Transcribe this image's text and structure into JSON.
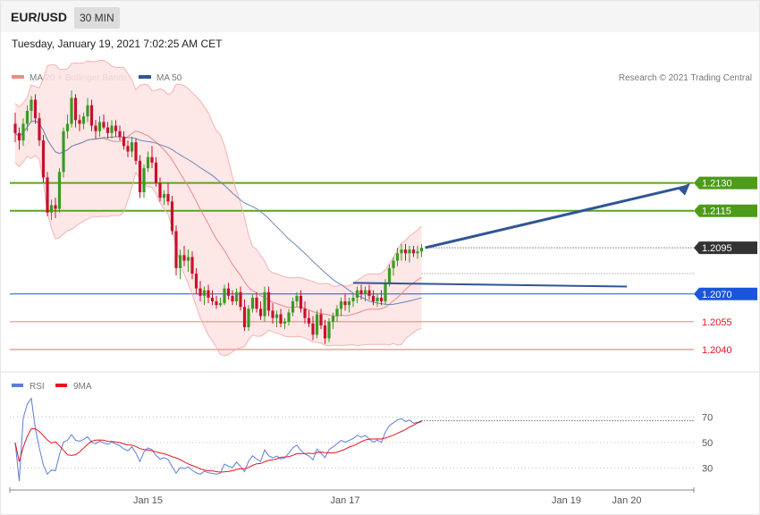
{
  "header": {
    "symbol": "EUR/USD",
    "timeframe": "30 MIN"
  },
  "timestamp": "Tuesday, January 19, 2021 7:02:25 AM CET",
  "legend": [
    {
      "label": "MA 20 + Bollinger Bands",
      "color": "#f08a8a"
    },
    {
      "label": "MA 50",
      "color": "#2f5597"
    }
  ],
  "rsi_legend": [
    {
      "label": "RSI",
      "color": "#5b7fd6"
    },
    {
      "label": "9MA",
      "color": "#e8141e"
    }
  ],
  "credit": "Research © 2021 Trading Central",
  "colors": {
    "up": "#3a9a23",
    "down": "#c8102e",
    "resistance": "#5aa51f",
    "pivot": "#1a56db",
    "support": "#f08a8a",
    "arrow": "#2f5597",
    "band": "#fde3e3"
  },
  "levels": [
    {
      "value": "1.2130",
      "type": "resistance",
      "color": "#4e9a1a"
    },
    {
      "value": "1.2115",
      "type": "resistance",
      "color": "#4e9a1a"
    },
    {
      "value": "1.2095",
      "type": "current",
      "color": "#333333"
    },
    {
      "value": "1.2070",
      "type": "pivot",
      "color": "#1a56db"
    },
    {
      "value": "1.2055",
      "type": "support",
      "color": "#e8141e"
    },
    {
      "value": "1.2040",
      "type": "support",
      "color": "#e8141e"
    }
  ],
  "chart_data": [
    {
      "type": "candlestick",
      "title": "EUR/USD 30 MIN",
      "x_ticks": [
        "Jan 15",
        "Jan 17",
        "Jan 19",
        "Jan 20"
      ],
      "ylim": [
        1.2038,
        1.2183
      ],
      "candles": [
        [
          1.2162,
          1.2168,
          1.2152,
          1.2157
        ],
        [
          1.2157,
          1.216,
          1.2148,
          1.2153
        ],
        [
          1.2153,
          1.2165,
          1.215,
          1.2162
        ],
        [
          1.2162,
          1.2172,
          1.2158,
          1.2169
        ],
        [
          1.2169,
          1.2177,
          1.2163,
          1.2175
        ],
        [
          1.2175,
          1.2178,
          1.2162,
          1.2165
        ],
        [
          1.2165,
          1.2168,
          1.215,
          1.2153
        ],
        [
          1.2153,
          1.2156,
          1.213,
          1.2133
        ],
        [
          1.2133,
          1.2136,
          1.2112,
          1.2114
        ],
        [
          1.2114,
          1.2121,
          1.211,
          1.2118
        ],
        [
          1.2118,
          1.2122,
          1.2111,
          1.2116
        ],
        [
          1.2116,
          1.2138,
          1.2114,
          1.2136
        ],
        [
          1.2136,
          1.216,
          1.2133,
          1.2158
        ],
        [
          1.2158,
          1.2167,
          1.2154,
          1.2162
        ],
        [
          1.2162,
          1.218,
          1.216,
          1.2176
        ],
        [
          1.2176,
          1.2178,
          1.216,
          1.2164
        ],
        [
          1.2164,
          1.2167,
          1.2158,
          1.2162
        ],
        [
          1.2162,
          1.2168,
          1.2159,
          1.2166
        ],
        [
          1.2166,
          1.2176,
          1.2163,
          1.2172
        ],
        [
          1.2172,
          1.2175,
          1.2158,
          1.2161
        ],
        [
          1.2161,
          1.2164,
          1.2154,
          1.2158
        ],
        [
          1.2158,
          1.2166,
          1.2155,
          1.2163
        ],
        [
          1.2163,
          1.2167,
          1.2159,
          1.216
        ],
        [
          1.216,
          1.2163,
          1.2154,
          1.2157
        ],
        [
          1.2157,
          1.2164,
          1.2154,
          1.2161
        ],
        [
          1.2161,
          1.2164,
          1.2155,
          1.2158
        ],
        [
          1.2158,
          1.2161,
          1.2153,
          1.2155
        ],
        [
          1.2155,
          1.2158,
          1.2148,
          1.215
        ],
        [
          1.215,
          1.2153,
          1.2144,
          1.2147
        ],
        [
          1.2147,
          1.2155,
          1.2144,
          1.2152
        ],
        [
          1.2152,
          1.2154,
          1.214,
          1.2142
        ],
        [
          1.2142,
          1.2145,
          1.2122,
          1.2125
        ],
        [
          1.2125,
          1.214,
          1.2122,
          1.2138
        ],
        [
          1.2138,
          1.2147,
          1.2136,
          1.2144
        ],
        [
          1.2144,
          1.215,
          1.2138,
          1.2141
        ],
        [
          1.2141,
          1.2144,
          1.2128,
          1.213
        ],
        [
          1.213,
          1.2133,
          1.212,
          1.2122
        ],
        [
          1.2122,
          1.2126,
          1.2118,
          1.2124
        ],
        [
          1.2124,
          1.213,
          1.2118,
          1.212
        ],
        [
          1.212,
          1.2123,
          1.2102,
          1.2104
        ],
        [
          1.2104,
          1.2107,
          1.208,
          1.2084
        ],
        [
          1.2084,
          1.2094,
          1.2078,
          1.2091
        ],
        [
          1.2091,
          1.2096,
          1.2085,
          1.2088
        ],
        [
          1.2088,
          1.2094,
          1.2082,
          1.209
        ],
        [
          1.209,
          1.2093,
          1.2078,
          1.2081
        ],
        [
          1.2081,
          1.2084,
          1.207,
          1.2073
        ],
        [
          1.2073,
          1.2077,
          1.2066,
          1.2069
        ],
        [
          1.2069,
          1.2074,
          1.2064,
          1.2072
        ],
        [
          1.2072,
          1.2075,
          1.2065,
          1.2068
        ],
        [
          1.2068,
          1.2072,
          1.2064,
          1.2066
        ],
        [
          1.2066,
          1.2069,
          1.2062,
          1.2064
        ],
        [
          1.2064,
          1.2068,
          1.2063,
          1.2065
        ],
        [
          1.2065,
          1.2075,
          1.2064,
          1.2073
        ],
        [
          1.2073,
          1.2076,
          1.2067,
          1.2069
        ],
        [
          1.2069,
          1.2072,
          1.2064,
          1.2066
        ],
        [
          1.2066,
          1.2073,
          1.2064,
          1.2071
        ],
        [
          1.2071,
          1.2074,
          1.2061,
          1.2063
        ],
        [
          1.2063,
          1.2067,
          1.205,
          1.2052
        ],
        [
          1.2052,
          1.2064,
          1.205,
          1.2062
        ],
        [
          1.2062,
          1.207,
          1.206,
          1.2068
        ],
        [
          1.2068,
          1.2071,
          1.206,
          1.2062
        ],
        [
          1.2062,
          1.2066,
          1.2056,
          1.2058
        ],
        [
          1.2058,
          1.2074,
          1.2055,
          1.2071
        ],
        [
          1.2071,
          1.2074,
          1.2058,
          1.2061
        ],
        [
          1.2061,
          1.2065,
          1.2054,
          1.2057
        ],
        [
          1.2057,
          1.2061,
          1.2052,
          1.2059
        ],
        [
          1.2059,
          1.2062,
          1.2052,
          1.2054
        ],
        [
          1.2054,
          1.2057,
          1.2051,
          1.2055
        ],
        [
          1.2055,
          1.2062,
          1.2053,
          1.206
        ],
        [
          1.206,
          1.2068,
          1.2058,
          1.2066
        ],
        [
          1.2066,
          1.2071,
          1.2063,
          1.2069
        ],
        [
          1.2069,
          1.2072,
          1.206,
          1.2062
        ],
        [
          1.2062,
          1.2066,
          1.2054,
          1.2057
        ],
        [
          1.2057,
          1.2061,
          1.2052,
          1.2054
        ],
        [
          1.2054,
          1.2058,
          1.2045,
          1.2048
        ],
        [
          1.2048,
          1.2061,
          1.2046,
          1.2059
        ],
        [
          1.2059,
          1.2062,
          1.2051,
          1.2053
        ],
        [
          1.2053,
          1.2056,
          1.2043,
          1.2046
        ],
        [
          1.2046,
          1.2057,
          1.2044,
          1.2055
        ],
        [
          1.2055,
          1.206,
          1.2051,
          1.2058
        ],
        [
          1.2058,
          1.2064,
          1.2055,
          1.2062
        ],
        [
          1.2062,
          1.2068,
          1.2058,
          1.2066
        ],
        [
          1.2066,
          1.207,
          1.2061,
          1.2064
        ],
        [
          1.2064,
          1.2068,
          1.206,
          1.2066
        ],
        [
          1.2066,
          1.207,
          1.2063,
          1.2068
        ],
        [
          1.2068,
          1.2074,
          1.2065,
          1.2072
        ],
        [
          1.2072,
          1.2075,
          1.2067,
          1.207
        ],
        [
          1.207,
          1.2074,
          1.2066,
          1.2072
        ],
        [
          1.2072,
          1.2075,
          1.2067,
          1.2069
        ],
        [
          1.2069,
          1.2072,
          1.2064,
          1.2066
        ],
        [
          1.2066,
          1.207,
          1.2063,
          1.2068
        ],
        [
          1.2068,
          1.2072,
          1.2064,
          1.2066
        ],
        [
          1.2066,
          1.2078,
          1.2064,
          1.2076
        ],
        [
          1.2076,
          1.2086,
          1.2074,
          1.2084
        ],
        [
          1.2084,
          1.209,
          1.208,
          1.2088
        ],
        [
          1.2088,
          1.2095,
          1.2085,
          1.2092
        ],
        [
          1.2092,
          1.2097,
          1.2088,
          1.2094
        ],
        [
          1.2094,
          1.2097,
          1.2088,
          1.2092
        ],
        [
          1.2092,
          1.2096,
          1.2087,
          1.2094
        ],
        [
          1.2094,
          1.2096,
          1.209,
          1.2092
        ],
        [
          1.2092,
          1.2096,
          1.2089,
          1.2093
        ],
        [
          1.2093,
          1.2097,
          1.209,
          1.2095
        ]
      ]
    },
    {
      "type": "line",
      "title": "RSI",
      "series": [
        {
          "name": "RSI"
        },
        {
          "name": "9MA"
        }
      ],
      "y_ticks": [
        70,
        50,
        30
      ],
      "ylim": [
        15,
        85
      ]
    }
  ]
}
